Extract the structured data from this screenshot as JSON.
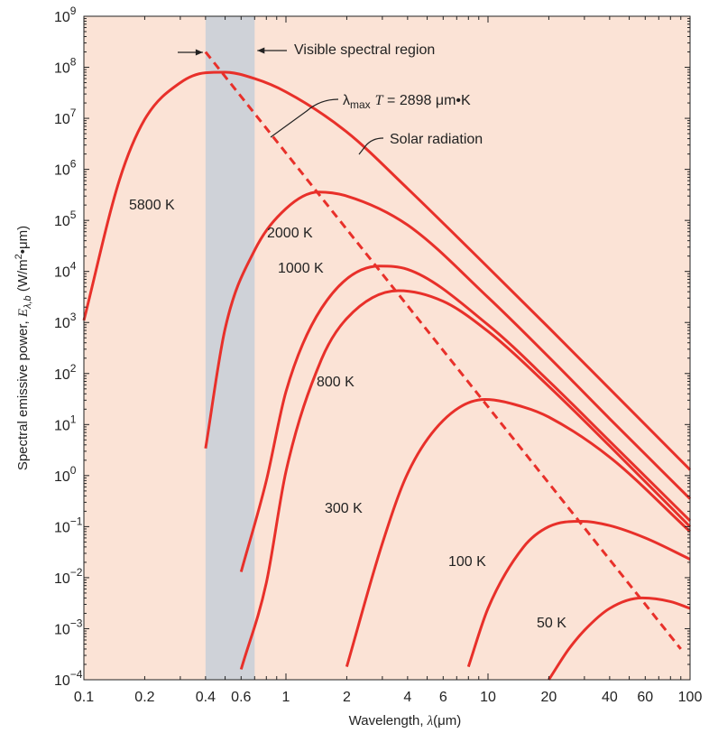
{
  "chart_data": {
    "type": "line",
    "xlabel": "Wavelength, λ(μm)",
    "ylabel": "Spectral emissive power, Eλ,b (W/m²·μm)",
    "x_scale": "log",
    "y_scale": "log",
    "xlim": [
      0.1,
      100
    ],
    "ylim": [
      0.0001,
      1000000000
    ],
    "x_tick_labels": [
      {
        "value": 0.1,
        "label": "0.1"
      },
      {
        "value": 0.2,
        "label": "0.2"
      },
      {
        "value": 0.4,
        "label": "0.4"
      },
      {
        "value": 0.6,
        "label": "0.6"
      },
      {
        "value": 1,
        "label": "1"
      },
      {
        "value": 2,
        "label": "2"
      },
      {
        "value": 4,
        "label": "4"
      },
      {
        "value": 6,
        "label": "6"
      },
      {
        "value": 10,
        "label": "10"
      },
      {
        "value": 20,
        "label": "20"
      },
      {
        "value": 40,
        "label": "40"
      },
      {
        "value": 60,
        "label": "60"
      },
      {
        "value": 100,
        "label": "100"
      }
    ],
    "y_tick_exponents": [
      -4,
      -3,
      -2,
      -1,
      0,
      1,
      2,
      3,
      4,
      5,
      6,
      7,
      8,
      9
    ],
    "grid": false,
    "background_color": "#fbe3d6",
    "curve_color": "#e8302a",
    "visible_band": {
      "x_range": [
        0.4,
        0.7
      ],
      "color": "#cfd2d8"
    },
    "series": [
      {
        "name": "5800 K",
        "x": [
          0.1,
          0.15,
          0.2,
          0.3,
          0.4,
          0.5,
          0.7,
          1,
          2,
          4,
          10,
          20,
          40,
          100
        ],
        "y": [
          1100,
          620000,
          9500000,
          50000000,
          78000000,
          80000000,
          60000000,
          33000000,
          5400000,
          420000,
          12000,
          790,
          50,
          1.3
        ]
      },
      {
        "name": "2000 K",
        "x": [
          0.4,
          0.5,
          0.7,
          1,
          1.45,
          2,
          4,
          10,
          20,
          40,
          100
        ],
        "y": [
          3.4,
          760,
          26000,
          170000,
          360000,
          300000,
          81000,
          3100,
          210,
          13,
          0.35
        ]
      },
      {
        "name": "1000 K",
        "x": [
          0.6,
          0.8,
          1,
          1.5,
          2.9,
          4,
          10,
          20,
          40,
          100
        ],
        "y": [
          0.013,
          0.8,
          44,
          1900,
          12700,
          11000,
          900,
          71,
          4.7,
          0.13
        ]
      },
      {
        "name": "800 K",
        "x": [
          0.6,
          0.8,
          1,
          1.5,
          2,
          3.6,
          6,
          10,
          20,
          40,
          100
        ],
        "y": [
          0.00016,
          0.008,
          1.2,
          190,
          1200,
          4200,
          2600,
          670,
          56,
          3.8,
          0.1
        ]
      },
      {
        "name": "300 K",
        "x": [
          2,
          3,
          4,
          6,
          9.66,
          15,
          20,
          40,
          100
        ],
        "y": [
          0.00018,
          0.047,
          1.1,
          12,
          31,
          22,
          14,
          2.3,
          0.08
        ]
      },
      {
        "name": "100 K",
        "x": [
          8,
          10,
          15,
          20,
          29,
          40,
          60,
          100
        ],
        "y": [
          0.00018,
          0.0025,
          0.04,
          0.1,
          0.127,
          0.105,
          0.06,
          0.023
        ]
      },
      {
        "name": "50 K",
        "x": [
          20,
          25,
          30,
          40,
          58,
          80,
          100
        ],
        "y": [
          0.0001,
          0.00039,
          0.00093,
          0.0025,
          0.004,
          0.0034,
          0.0025
        ]
      }
    ],
    "wien_line": {
      "label": "λmax T = 2898 μm·K",
      "x": [
        0.4,
        90
      ],
      "y": [
        200000000,
        0.0004
      ]
    },
    "annotations": {
      "visible": "Visible spectral region",
      "solar": "Solar radiation"
    }
  },
  "axis_text": {
    "ylabel_prefix": "Spectral emissive power, ",
    "ylabel_symbol": "E",
    "ylabel_sub": "λ,b",
    "ylabel_unit_open": " (W/m",
    "ylabel_unit_sup": "2",
    "ylabel_unit_close": "•μm)",
    "xlabel_text": "Wavelength, ",
    "xlabel_symbol": "λ",
    "xlabel_unit": "(μm)",
    "y_tick_base": "10",
    "wien_lambda": "λ",
    "wien_sub": "max",
    "wien_T": "T",
    "wien_rest": " = 2898 μm•K"
  }
}
